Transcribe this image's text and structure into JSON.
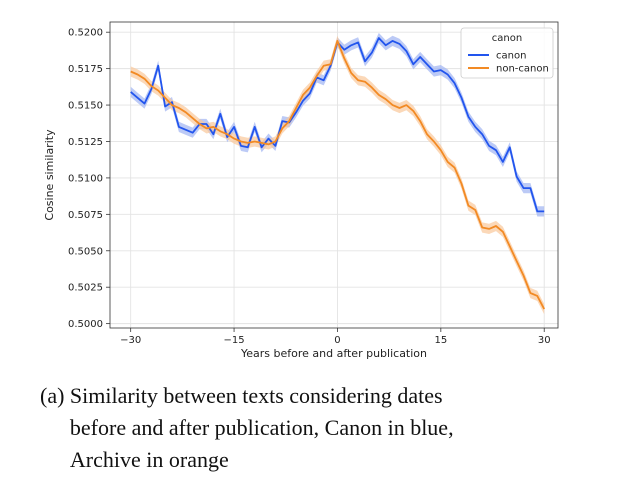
{
  "chart_data": {
    "type": "line",
    "xlabel": "Years before and after publication",
    "ylabel": "Cosine similarity",
    "xlim": [
      -33,
      32
    ],
    "ylim": [
      0.4997,
      0.5207
    ],
    "xticks": [
      -30,
      -15,
      0,
      15,
      30
    ],
    "xtick_labels": [
      "−30",
      "−15",
      "0",
      "15",
      "30"
    ],
    "yticks": [
      0.5,
      0.5025,
      0.505,
      0.5075,
      0.51,
      0.5125,
      0.515,
      0.5175,
      0.52
    ],
    "ytick_labels": [
      "0.5000",
      "0.5025",
      "0.5050",
      "0.5075",
      "0.5100",
      "0.5125",
      "0.5150",
      "0.5175",
      "0.5200"
    ],
    "grid": true,
    "legend": {
      "title": "canon",
      "placement": "top-right"
    },
    "series": [
      {
        "name": "canon",
        "color": "#2255ee",
        "band_color": "#9fb4f2",
        "x": [
          -30,
          -29,
          -28,
          -27,
          -26,
          -25,
          -24,
          -23,
          -22,
          -21,
          -20,
          -19,
          -18,
          -17,
          -16,
          -15,
          -14,
          -13,
          -12,
          -11,
          -10,
          -9,
          -8,
          -7,
          -6,
          -5,
          -4,
          -3,
          -2,
          -1,
          0,
          1,
          2,
          3,
          4,
          5,
          6,
          7,
          8,
          9,
          10,
          11,
          12,
          13,
          14,
          15,
          16,
          17,
          18,
          19,
          20,
          21,
          22,
          23,
          24,
          25,
          26,
          27,
          28,
          29,
          30
        ],
        "y": [
          0.5159,
          0.5155,
          0.5151,
          0.5161,
          0.5177,
          0.5149,
          0.5152,
          0.5135,
          0.5133,
          0.5131,
          0.5137,
          0.5137,
          0.513,
          0.5144,
          0.5128,
          0.5135,
          0.5122,
          0.5121,
          0.5135,
          0.5121,
          0.5127,
          0.5122,
          0.5139,
          0.5138,
          0.5145,
          0.5153,
          0.5158,
          0.5169,
          0.5167,
          0.5177,
          0.5193,
          0.5188,
          0.5191,
          0.5193,
          0.518,
          0.5186,
          0.5196,
          0.5191,
          0.5194,
          0.5192,
          0.5187,
          0.5178,
          0.5183,
          0.5178,
          0.5173,
          0.5174,
          0.5171,
          0.5165,
          0.5155,
          0.5142,
          0.5135,
          0.513,
          0.5122,
          0.5119,
          0.5111,
          0.5121,
          0.5101,
          0.5093,
          0.5093,
          0.5077,
          0.5077
        ],
        "x_trim": [
          -30,
          -29,
          -28,
          -27,
          -26,
          -25,
          -24,
          -23,
          -22,
          -21,
          -20,
          -19,
          -18,
          -17,
          -16,
          -15,
          -14,
          -13,
          -12,
          -11,
          -10,
          -9,
          -8,
          -7,
          -6,
          -5,
          -4,
          -3,
          -2,
          -1,
          0,
          1,
          2,
          3,
          4,
          5,
          6,
          7,
          8,
          9,
          10,
          11,
          12,
          13,
          14,
          15,
          16,
          17,
          18,
          19,
          20,
          21,
          22,
          23,
          24,
          25,
          26,
          27,
          28,
          29,
          30
        ]
      },
      {
        "name": "non-canon",
        "color": "#f28a24",
        "band_color": "#f9c79a",
        "x": [
          -30,
          -29,
          -28,
          -27,
          -26,
          -25,
          -24,
          -23,
          -22,
          -21,
          -20,
          -19,
          -18,
          -17,
          -16,
          -15,
          -14,
          -13,
          -12,
          -11,
          -10,
          -9,
          -8,
          -7,
          -6,
          -5,
          -4,
          -3,
          -2,
          -1,
          0,
          1,
          2,
          3,
          4,
          5,
          6,
          7,
          8,
          9,
          10,
          11,
          12,
          13,
          14,
          15,
          16,
          17,
          18,
          19,
          20,
          21,
          22,
          23,
          24,
          25,
          26,
          27,
          28,
          29,
          30
        ],
        "y": [
          0.5173,
          0.5171,
          0.5168,
          0.5163,
          0.516,
          0.5155,
          0.515,
          0.5148,
          0.5145,
          0.5141,
          0.5137,
          0.5134,
          0.5135,
          0.5132,
          0.513,
          0.5127,
          0.5125,
          0.5124,
          0.5125,
          0.5124,
          0.5123,
          0.5125,
          0.5134,
          0.5139,
          0.5148,
          0.5157,
          0.5162,
          0.517,
          0.5177,
          0.5178,
          0.5194,
          0.5182,
          0.5172,
          0.5167,
          0.5166,
          0.5162,
          0.5157,
          0.5154,
          0.515,
          0.5148,
          0.515,
          0.5146,
          0.5139,
          0.513,
          0.5125,
          0.5119,
          0.5111,
          0.5107,
          0.5096,
          0.5081,
          0.5078,
          0.5066,
          0.5065,
          0.5067,
          0.5063,
          0.5053,
          0.5043,
          0.5033,
          0.5021,
          0.5019,
          0.501
        ]
      }
    ]
  },
  "caption": {
    "label": "(a)",
    "lines": [
      "Similarity between texts considering dates",
      "before and after publication, Canon in blue,",
      "Archive in orange"
    ]
  }
}
